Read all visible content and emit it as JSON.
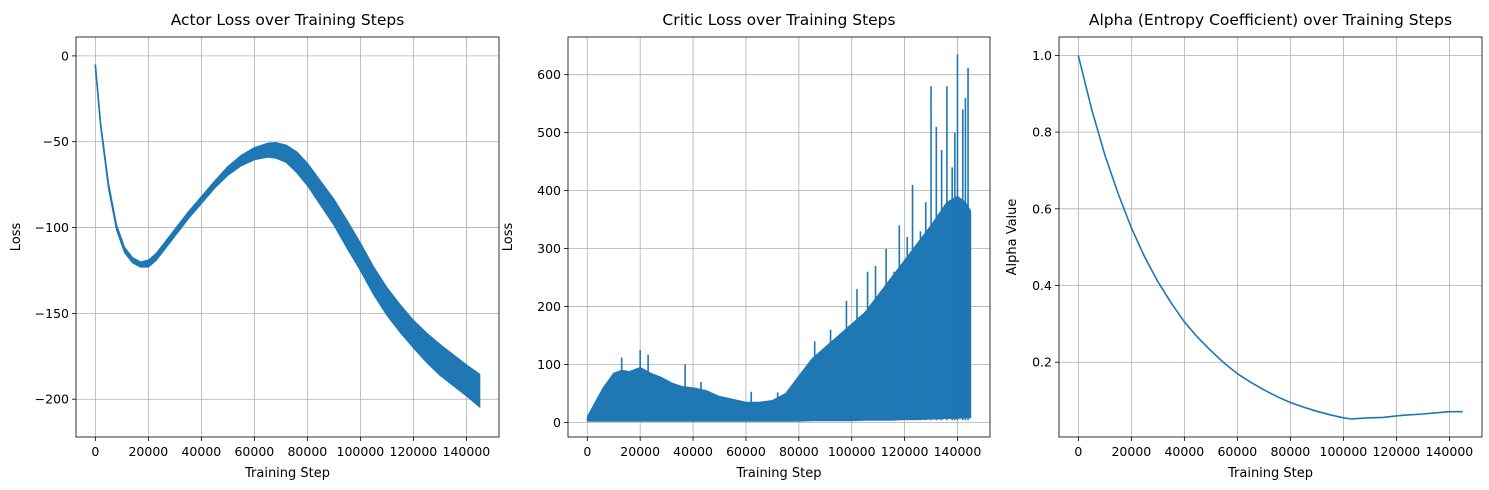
{
  "chart_data": [
    {
      "type": "line",
      "title": "Actor Loss over Training Steps",
      "xlabel": "Training Step",
      "ylabel": "Loss",
      "xlim": [
        -7300,
        152300
      ],
      "ylim": [
        -222,
        11
      ],
      "xticks": [
        0,
        20000,
        40000,
        60000,
        80000,
        100000,
        120000,
        140000
      ],
      "yticks": [
        0,
        -50,
        -100,
        -150,
        -200
      ],
      "grid": true,
      "color": "#1f77b4",
      "series": [
        {
          "x": [
            0,
            2000,
            5000,
            8000,
            11000,
            14000,
            17000,
            20000,
            23000,
            26000,
            30000,
            35000,
            40000,
            45000,
            50000,
            55000,
            60000,
            65000,
            68000,
            72000,
            76000,
            80000,
            85000,
            90000,
            95000,
            100000,
            105000,
            110000,
            115000,
            120000,
            125000,
            130000,
            135000,
            140000,
            145000
          ],
          "y": [
            -5,
            -40,
            -76,
            -100,
            -113,
            -119,
            -121.5,
            -121,
            -117,
            -111,
            -103,
            -93,
            -84,
            -75,
            -67,
            -61,
            -57,
            -55,
            -55,
            -57,
            -62,
            -69,
            -80,
            -91,
            -104,
            -117,
            -131,
            -143,
            -153,
            -162,
            -170,
            -177,
            -183,
            -189,
            -195
          ],
          "band": [
            0,
            1,
            1.5,
            1.5,
            1.5,
            1.5,
            1.5,
            2,
            2,
            2,
            2,
            2,
            2,
            2,
            2.5,
            3,
            3.5,
            4,
            4.5,
            5,
            6,
            6.5,
            7,
            7.5,
            8,
            8,
            8,
            8,
            8,
            8,
            8.5,
            9,
            9,
            9,
            9.5
          ]
        }
      ]
    },
    {
      "type": "line",
      "title": "Critic Loss over Training Steps",
      "xlabel": "Training Step",
      "ylabel": "Loss",
      "xlim": [
        -7300,
        152300
      ],
      "ylim": [
        -25,
        665
      ],
      "xticks": [
        0,
        20000,
        40000,
        60000,
        80000,
        100000,
        120000,
        140000
      ],
      "yticks": [
        0,
        100,
        200,
        300,
        400,
        500,
        600
      ],
      "grid": true,
      "color": "#1f77b4",
      "series": [
        {
          "x": [
            0,
            3000,
            6000,
            10000,
            13000,
            16000,
            20000,
            24000,
            28000,
            32000,
            36000,
            40000,
            45000,
            50000,
            55000,
            60000,
            65000,
            70000,
            75000,
            80000,
            85000,
            90000,
            95000,
            100000,
            105000,
            110000,
            115000,
            120000,
            125000,
            130000,
            133000,
            136000,
            140000,
            143000,
            145000
          ],
          "low": [
            2,
            2,
            2,
            2,
            2,
            2,
            2,
            2,
            2,
            2,
            2,
            2,
            2,
            2,
            2,
            2,
            2,
            2,
            2,
            2,
            3,
            3,
            3,
            3,
            4,
            4,
            4,
            5,
            5,
            6,
            6,
            7,
            7,
            8,
            8
          ],
          "high": [
            10,
            35,
            60,
            85,
            90,
            88,
            95,
            85,
            78,
            68,
            62,
            60,
            55,
            45,
            40,
            35,
            35,
            38,
            50,
            80,
            110,
            130,
            150,
            170,
            190,
            220,
            250,
            280,
            310,
            340,
            360,
            380,
            390,
            380,
            365
          ],
          "spikes": [
            [
              13000,
              112
            ],
            [
              20000,
              125
            ],
            [
              23000,
              117
            ],
            [
              37000,
              100
            ],
            [
              43000,
              70
            ],
            [
              62000,
              53
            ],
            [
              72000,
              52
            ],
            [
              77000,
              62
            ],
            [
              86000,
              140
            ],
            [
              92000,
              160
            ],
            [
              98000,
              210
            ],
            [
              102000,
              230
            ],
            [
              106000,
              260
            ],
            [
              109000,
              270
            ],
            [
              113000,
              300
            ],
            [
              116000,
              260
            ],
            [
              118000,
              340
            ],
            [
              121000,
              320
            ],
            [
              123000,
              410
            ],
            [
              126000,
              330
            ],
            [
              128000,
              380
            ],
            [
              130000,
              580
            ],
            [
              132000,
              510
            ],
            [
              134000,
              470
            ],
            [
              136000,
              580
            ],
            [
              138000,
              440
            ],
            [
              139000,
              500
            ],
            [
              140000,
              635
            ],
            [
              142000,
              540
            ],
            [
              143000,
              560
            ],
            [
              144000,
              612
            ]
          ]
        }
      ]
    },
    {
      "type": "line",
      "title": "Alpha (Entropy Coefficient) over Training Steps",
      "xlabel": "Training Step",
      "ylabel": "Alpha Value",
      "xlim": [
        -7300,
        152300
      ],
      "ylim": [
        0.005,
        1.048
      ],
      "xticks": [
        0,
        20000,
        40000,
        60000,
        80000,
        100000,
        120000,
        140000
      ],
      "yticks": [
        0.2,
        0.4,
        0.6,
        0.8,
        1.0
      ],
      "ytick_labels": [
        "0.2",
        "0.4",
        "0.6",
        "0.8",
        "1.0"
      ],
      "grid": true,
      "color": "#1f77b4",
      "series": [
        {
          "x": [
            0,
            5000,
            10000,
            15000,
            20000,
            25000,
            30000,
            35000,
            40000,
            45000,
            50000,
            55000,
            60000,
            65000,
            70000,
            75000,
            80000,
            85000,
            90000,
            95000,
            100000,
            103000,
            105000,
            110000,
            115000,
            120000,
            125000,
            130000,
            135000,
            140000,
            145000
          ],
          "y": [
            1.0,
            0.86,
            0.74,
            0.64,
            0.55,
            0.475,
            0.41,
            0.355,
            0.305,
            0.265,
            0.23,
            0.198,
            0.17,
            0.148,
            0.128,
            0.11,
            0.095,
            0.083,
            0.072,
            0.063,
            0.055,
            0.052,
            0.053,
            0.055,
            0.056,
            0.06,
            0.063,
            0.065,
            0.068,
            0.071,
            0.071
          ]
        }
      ]
    }
  ]
}
